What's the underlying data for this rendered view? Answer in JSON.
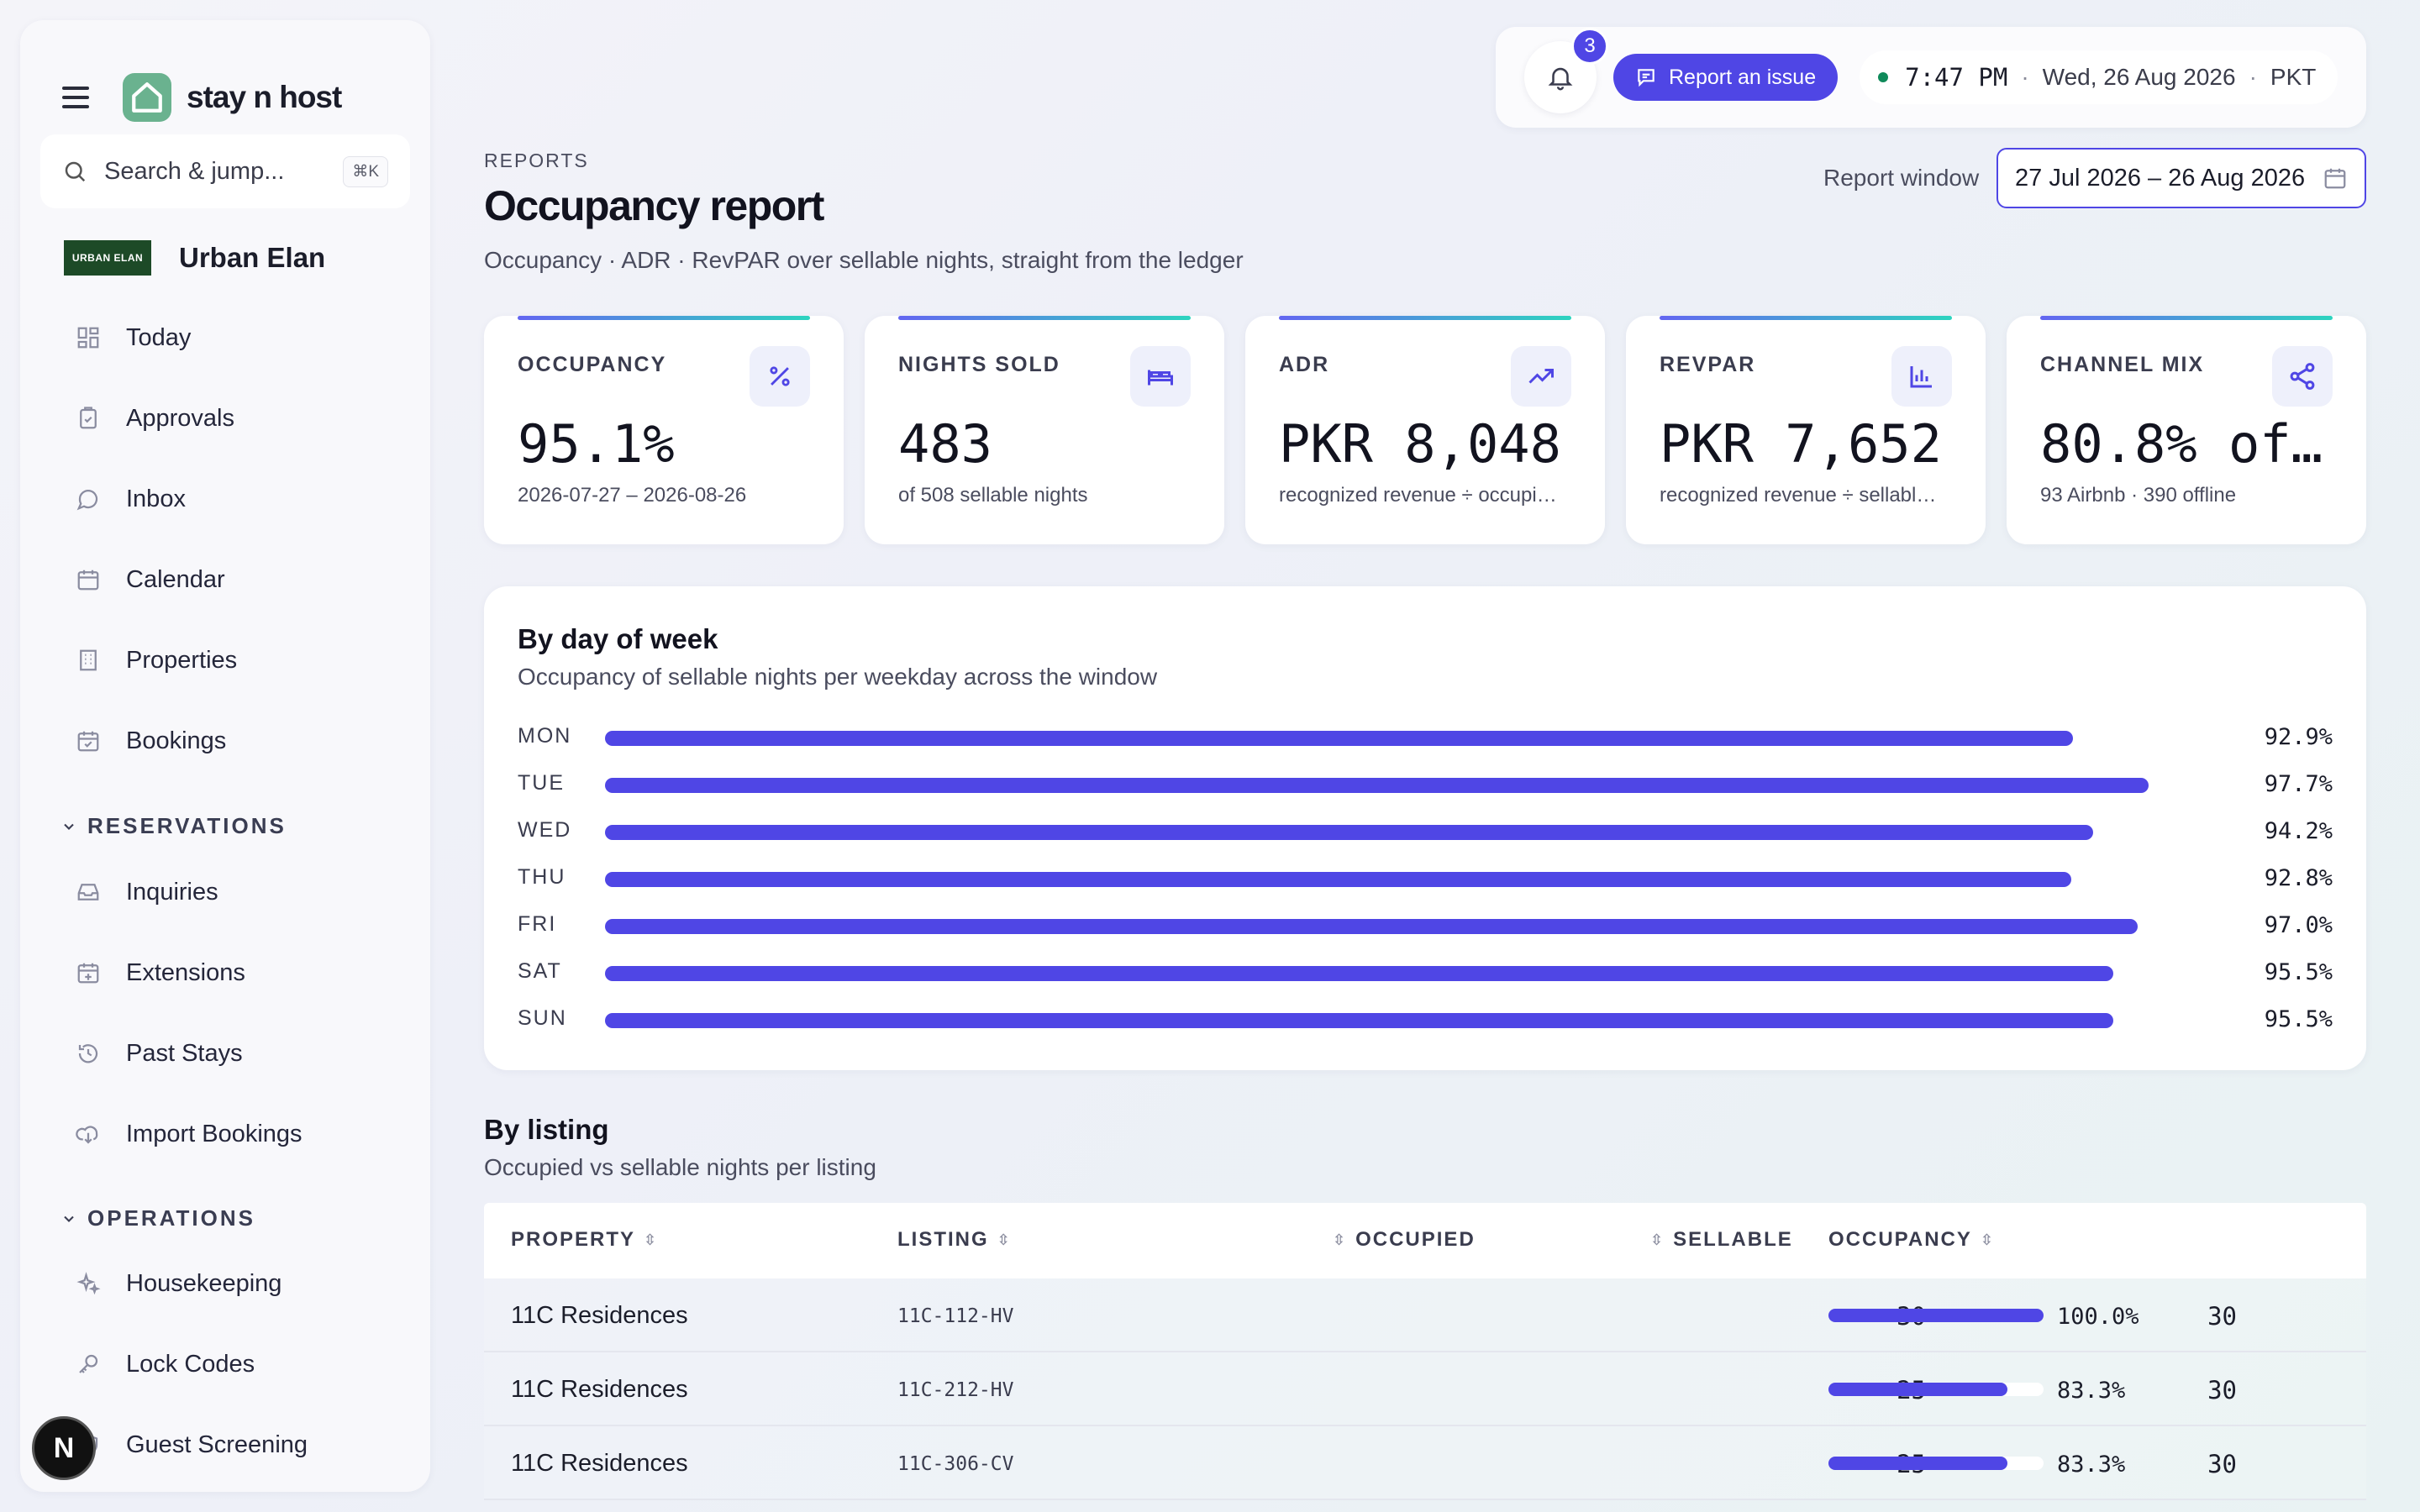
{
  "app": {
    "brand": "stay n host",
    "tenant_logo_text": "URBAN ELAN",
    "tenant_name": "Urban Elan",
    "accent": "#4f46e5"
  },
  "search": {
    "placeholder": "Search & jump...",
    "shortcut": "⌘K"
  },
  "sidebar": {
    "items_top": [
      {
        "label": "Today",
        "icon": "grid-icon"
      },
      {
        "label": "Approvals",
        "icon": "clipboard-check-icon"
      },
      {
        "label": "Inbox",
        "icon": "chat-bubble-icon"
      },
      {
        "label": "Calendar",
        "icon": "calendar-icon"
      },
      {
        "label": "Properties",
        "icon": "building-icon"
      },
      {
        "label": "Bookings",
        "icon": "calendar-check-icon"
      }
    ],
    "section_reservations": "RESERVATIONS",
    "items_reservations": [
      {
        "label": "Inquiries",
        "icon": "inbox-tray-icon"
      },
      {
        "label": "Extensions",
        "icon": "calendar-plus-icon"
      },
      {
        "label": "Past Stays",
        "icon": "history-icon"
      },
      {
        "label": "Import Bookings",
        "icon": "cloud-download-icon"
      }
    ],
    "section_operations": "OPERATIONS",
    "items_operations": [
      {
        "label": "Housekeeping",
        "icon": "sparkles-icon"
      },
      {
        "label": "Lock Codes",
        "icon": "key-icon"
      },
      {
        "label": "Guest Screening",
        "icon": "shield-icon"
      }
    ],
    "dev_badge": "N"
  },
  "topbar": {
    "notification_count": "3",
    "report_issue_label": "Report an issue",
    "time": "7:47 PM",
    "date": "Wed, 26 Aug 2026",
    "timezone": "PKT"
  },
  "header": {
    "eyebrow": "REPORTS",
    "title": "Occupancy report",
    "subtitle": "Occupancy · ADR · RevPAR over sellable nights, straight from the ledger",
    "report_window_label": "Report window",
    "report_window_value": "27 Jul 2026 – 26 Aug 2026"
  },
  "kpis": [
    {
      "label": "OCCUPANCY",
      "value": "95.1%",
      "sub": "2026-07-27 – 2026-08-26",
      "icon": "percent-icon"
    },
    {
      "label": "NIGHTS SOLD",
      "value": "483",
      "sub": "of 508 sellable nights",
      "icon": "bed-icon"
    },
    {
      "label": "ADR",
      "value": "PKR 8,048",
      "sub": "recognized revenue ÷ occupi…",
      "icon": "trending-up-icon"
    },
    {
      "label": "REVPAR",
      "value": "PKR 7,652",
      "sub": "recognized revenue ÷ sellabl…",
      "icon": "bar-chart-icon"
    },
    {
      "label": "CHANNEL MIX",
      "value": "80.8% of…",
      "sub": "93 Airbnb · 390 offline",
      "icon": "share-icon"
    }
  ],
  "by_day": {
    "title": "By day of week",
    "subtitle": "Occupancy of sellable nights per weekday across the window",
    "rows": [
      {
        "day": "MON",
        "pct_label": "92.9%",
        "value": 92.9
      },
      {
        "day": "TUE",
        "pct_label": "97.7%",
        "value": 97.7
      },
      {
        "day": "WED",
        "pct_label": "94.2%",
        "value": 94.2
      },
      {
        "day": "THU",
        "pct_label": "92.8%",
        "value": 92.8
      },
      {
        "day": "FRI",
        "pct_label": "97.0%",
        "value": 97.0
      },
      {
        "day": "SAT",
        "pct_label": "95.5%",
        "value": 95.5
      },
      {
        "day": "SUN",
        "pct_label": "95.5%",
        "value": 95.5
      }
    ]
  },
  "by_listing": {
    "title": "By listing",
    "subtitle": "Occupied vs sellable nights per listing",
    "columns": {
      "property": "PROPERTY",
      "listing": "LISTING",
      "occupied": "OCCUPIED",
      "sellable": "SELLABLE",
      "occupancy": "OCCUPANCY"
    },
    "rows": [
      {
        "property": "11C Residences",
        "listing": "11C-112-HV",
        "occupied": "30",
        "sellable": "30",
        "occupancy": "100.0%",
        "value": 100.0
      },
      {
        "property": "11C Residences",
        "listing": "11C-212-HV",
        "occupied": "25",
        "sellable": "30",
        "occupancy": "83.3%",
        "value": 83.3
      },
      {
        "property": "11C Residences",
        "listing": "11C-306-CV",
        "occupied": "25",
        "sellable": "30",
        "occupancy": "83.3%",
        "value": 83.3
      }
    ]
  }
}
